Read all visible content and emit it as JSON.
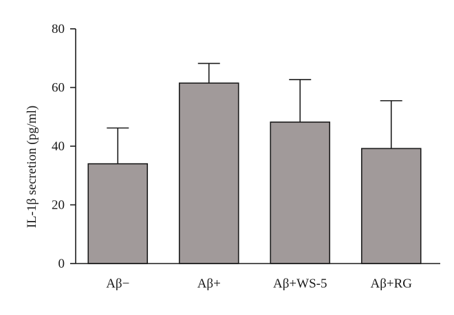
{
  "chart_data": {
    "type": "bar",
    "categories": [
      "Aβ−",
      "Aβ+",
      "Aβ+WS-5",
      "Aβ+RG"
    ],
    "values": [
      34,
      61.5,
      48.2,
      39.2
    ],
    "error_upper": [
      46.2,
      68.2,
      62.7,
      55.5
    ],
    "ylabel": "IL-1β secretion (pg/ml)",
    "ylim": [
      0,
      80
    ],
    "yticks": [
      "0",
      "20",
      "40",
      "60",
      "80"
    ],
    "ytick_values": [
      0,
      20,
      40,
      60,
      80
    ],
    "grid": false,
    "bar_color": "#a19a9a"
  }
}
